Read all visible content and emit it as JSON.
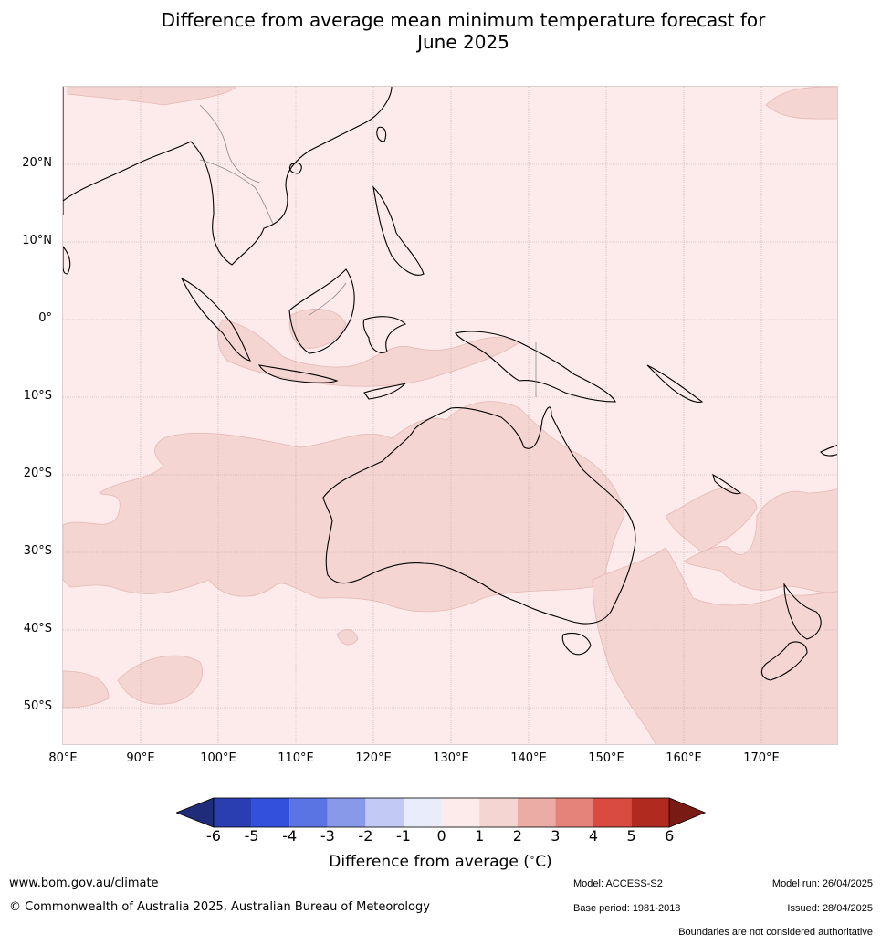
{
  "title": {
    "line1": "Difference from average mean minimum temperature forecast for",
    "line2": "June 2025"
  },
  "map": {
    "lat_labels": [
      "20°N",
      "10°N",
      "0°",
      "10°S",
      "20°S",
      "30°S",
      "40°S",
      "50°S"
    ],
    "lon_labels": [
      "80°E",
      "90°E",
      "100°E",
      "110°E",
      "120°E",
      "130°E",
      "140°E",
      "150°E",
      "160°E",
      "170°E"
    ],
    "extent": {
      "lon": [
        80,
        180
      ],
      "lat": [
        -55,
        30
      ]
    },
    "fill_colors": {
      "class_0_1": "#fcebea",
      "class_1_2": "#f5d5d2",
      "coast": "#000000",
      "border": "#888888",
      "grid": "#bbbbbb"
    }
  },
  "colorbar": {
    "ticks": [
      "-6",
      "-5",
      "-4",
      "-3",
      "-2",
      "-1",
      "0",
      "1",
      "2",
      "3",
      "4",
      "5",
      "6"
    ],
    "colors": [
      "#1f2c7a",
      "#2a3eb1",
      "#3350dc",
      "#5b74e3",
      "#8899ea",
      "#c2c9f4",
      "#e9ecfb",
      "#fcebea",
      "#f5d5d2",
      "#ecaca6",
      "#e5827a",
      "#d94a40",
      "#b02a20",
      "#7a1a14"
    ],
    "label": "Difference from average (",
    "unit": "C)"
  },
  "footer": {
    "website": "www.bom.gov.au/climate",
    "copyright": "© Commonwealth of Australia 2025, Australian Bureau of Meteorology",
    "model": "Model: ACCESS-S2",
    "model_run": "Model run: 26/04/2025",
    "base_period": "Base period: 1981-2018",
    "issued": "Issued: 28/04/2025",
    "disclaimer": "Boundaries are not considered authoritative"
  }
}
